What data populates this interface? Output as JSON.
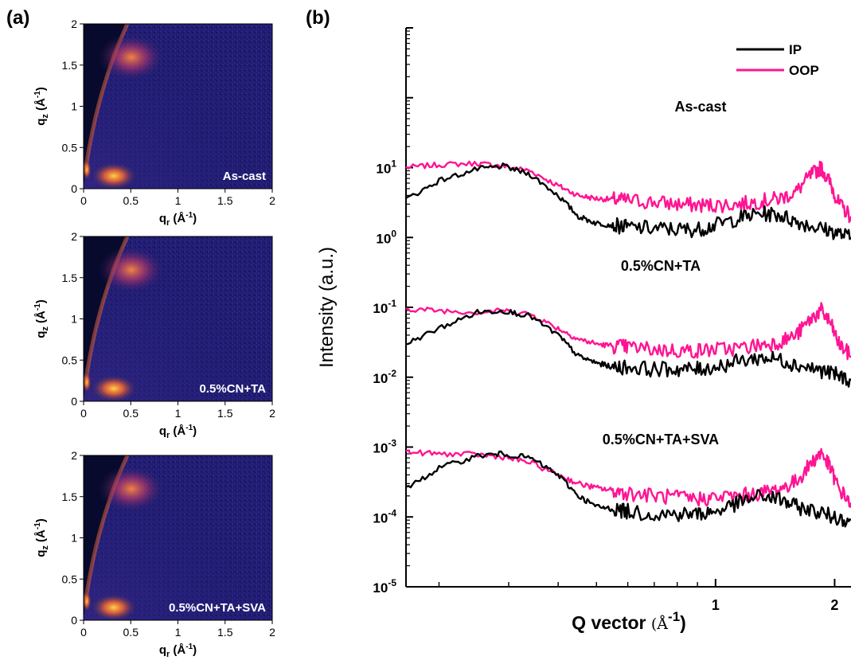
{
  "panels": {
    "a": {
      "label": "(a)"
    },
    "b": {
      "label": "(b)"
    }
  },
  "colors": {
    "IP": "#000000",
    "OOP": "#ff1493",
    "map_background": "#1e1b6e",
    "map_shadow": "#070a2c",
    "map_hot": "#ff8a3d"
  },
  "chart_data": [
    {
      "type": "heatmap",
      "label": "As-cast",
      "xlabel_main": "q",
      "xlabel_sub": "r",
      "xlabel_unit": "(Å",
      "xlabel_exp": "-1",
      "xlabel_close": ")",
      "ylabel_main": "q",
      "ylabel_sub": "z",
      "ylabel_unit": "(Å",
      "ylabel_exp": "-1",
      "ylabel_close": ")",
      "xlim": [
        0,
        2
      ],
      "ylim": [
        0,
        2
      ],
      "xticks": [
        "0",
        "0.5",
        "1",
        "1.5",
        "2"
      ],
      "yticks": [
        "0",
        "0.5",
        "1",
        "1.5",
        "2"
      ]
    },
    {
      "type": "heatmap",
      "label": "0.5%CN+TA",
      "xlabel_main": "q",
      "xlabel_sub": "r",
      "xlabel_unit": "(Å",
      "xlabel_exp": "-1",
      "xlabel_close": ")",
      "ylabel_main": "q",
      "ylabel_sub": "z",
      "ylabel_unit": "(Å",
      "ylabel_exp": "-1",
      "ylabel_close": ")",
      "xlim": [
        0,
        2
      ],
      "ylim": [
        0,
        2
      ],
      "xticks": [
        "0",
        "0.5",
        "1",
        "1.5",
        "2"
      ],
      "yticks": [
        "0",
        "0.5",
        "1",
        "1.5",
        "2"
      ]
    },
    {
      "type": "heatmap",
      "label": "0.5%CN+TA+SVA",
      "xlabel_main": "q",
      "xlabel_sub": "r",
      "xlabel_unit": "(Å",
      "xlabel_exp": "-1",
      "xlabel_close": ")",
      "ylabel_main": "q",
      "ylabel_sub": "z",
      "ylabel_unit": "(Å",
      "ylabel_exp": "-1",
      "ylabel_close": ")",
      "xlim": [
        0,
        2
      ],
      "ylim": [
        0,
        2
      ],
      "xticks": [
        "0",
        "0.5",
        "1",
        "1.5",
        "2"
      ],
      "yticks": [
        "0",
        "0.5",
        "1",
        "1.5",
        "2"
      ]
    },
    {
      "type": "line",
      "log_x": true,
      "log_y": true,
      "xlim": [
        0.165,
        2.2
      ],
      "ylim": [
        1e-05,
        1000
      ],
      "xlabel_main": "Q vector",
      "xlabel_unit": "(Å",
      "xlabel_exp": "-1",
      "xlabel_close": ")",
      "ylabel": "Intensity (a.u.)",
      "xtick_values": [
        1,
        2
      ],
      "xtick_labels": [
        "1",
        "2"
      ],
      "ytick_labels": [
        {
          "base": "10",
          "exp": "-5",
          "value": 1e-05
        },
        {
          "base": "10",
          "exp": "-4",
          "value": 0.0001
        },
        {
          "base": "10",
          "exp": "-3",
          "value": 0.001
        },
        {
          "base": "10",
          "exp": "-2",
          "value": 0.01
        },
        {
          "base": "10",
          "exp": "-1",
          "value": 0.1
        },
        {
          "base": "10",
          "exp": "0",
          "value": 1
        },
        {
          "base": "10",
          "exp": "1",
          "value": 10
        }
      ],
      "legend": [
        {
          "name": "IP"
        },
        {
          "name": "OOP"
        }
      ],
      "legend_position": "top-right",
      "groups": [
        {
          "label": "As-cast",
          "IP": {
            "x": [
              0.165,
              0.2,
              0.25,
              0.29,
              0.34,
              0.4,
              0.45,
              0.5,
              0.55,
              0.6,
              0.7,
              0.8,
              0.9,
              1.0,
              1.15,
              1.3,
              1.45,
              1.6,
              1.8,
              2.0,
              2.2
            ],
            "y": [
              3.5,
              6.5,
              9.5,
              10.5,
              8.0,
              4.0,
              2.0,
              1.6,
              1.5,
              1.4,
              1.35,
              1.3,
              1.3,
              1.5,
              1.9,
              2.2,
              2.1,
              1.7,
              1.4,
              1.2,
              1.0
            ]
          },
          "OOP": {
            "x": [
              0.165,
              0.2,
              0.25,
              0.29,
              0.34,
              0.4,
              0.45,
              0.5,
              0.55,
              0.6,
              0.7,
              0.8,
              0.9,
              1.0,
              1.15,
              1.3,
              1.45,
              1.6,
              1.75,
              1.85,
              1.95,
              2.05,
              2.2
            ],
            "y": [
              10,
              11,
              11.5,
              10.5,
              9.0,
              5.5,
              4.0,
              3.6,
              3.5,
              3.4,
              3.2,
              3.0,
              2.9,
              2.9,
              3.0,
              3.3,
              3.6,
              4.5,
              8.0,
              10.0,
              6.0,
              3.0,
              2.0
            ]
          }
        },
        {
          "label": "0.5%CN+TA",
          "IP": {
            "x": [
              0.165,
              0.2,
              0.25,
              0.29,
              0.34,
              0.4,
              0.45,
              0.5,
              0.55,
              0.6,
              0.7,
              0.8,
              0.9,
              1.0,
              1.15,
              1.3,
              1.45,
              1.6,
              1.8,
              2.0,
              2.2
            ],
            "y": [
              0.03,
              0.05,
              0.085,
              0.09,
              0.075,
              0.04,
              0.02,
              0.016,
              0.014,
              0.014,
              0.013,
              0.013,
              0.013,
              0.014,
              0.017,
              0.019,
              0.018,
              0.015,
              0.013,
              0.011,
              0.009
            ]
          },
          "OOP": {
            "x": [
              0.165,
              0.2,
              0.25,
              0.29,
              0.34,
              0.4,
              0.45,
              0.5,
              0.55,
              0.6,
              0.7,
              0.8,
              0.9,
              1.0,
              1.15,
              1.3,
              1.45,
              1.6,
              1.75,
              1.85,
              1.95,
              2.05,
              2.2
            ],
            "y": [
              0.095,
              0.09,
              0.085,
              0.09,
              0.08,
              0.05,
              0.035,
              0.03,
              0.028,
              0.027,
              0.025,
              0.024,
              0.024,
              0.025,
              0.026,
              0.029,
              0.032,
              0.04,
              0.07,
              0.09,
              0.06,
              0.03,
              0.02
            ]
          }
        },
        {
          "label": "0.5%CN+TA+SVA",
          "IP": {
            "x": [
              0.165,
              0.2,
              0.25,
              0.29,
              0.34,
              0.4,
              0.45,
              0.5,
              0.55,
              0.6,
              0.7,
              0.8,
              0.9,
              1.0,
              1.15,
              1.3,
              1.45,
              1.6,
              1.8,
              2.0,
              2.2
            ],
            "y": [
              0.00025,
              0.0005,
              0.00075,
              0.0008,
              0.0007,
              0.0004,
              0.0002,
              0.00014,
              0.00013,
              0.00012,
              0.00011,
              0.00011,
              0.00011,
              0.00012,
              0.00016,
              0.0002,
              0.00018,
              0.00014,
              0.00012,
              0.0001,
              9e-05
            ]
          },
          "OOP": {
            "x": [
              0.165,
              0.2,
              0.25,
              0.29,
              0.34,
              0.4,
              0.45,
              0.5,
              0.55,
              0.6,
              0.7,
              0.8,
              0.9,
              1.0,
              1.15,
              1.3,
              1.45,
              1.6,
              1.75,
              1.85,
              1.95,
              2.05,
              2.2
            ],
            "y": [
              0.00085,
              0.0008,
              0.00078,
              0.00072,
              0.0006,
              0.0004,
              0.0003,
              0.00026,
              0.00024,
              0.00022,
              0.0002,
              0.00019,
              0.00018,
              0.00019,
              0.0002,
              0.00022,
              0.00025,
              0.00032,
              0.0006,
              0.00085,
              0.0005,
              0.00025,
              0.00016
            ]
          }
        }
      ]
    }
  ]
}
